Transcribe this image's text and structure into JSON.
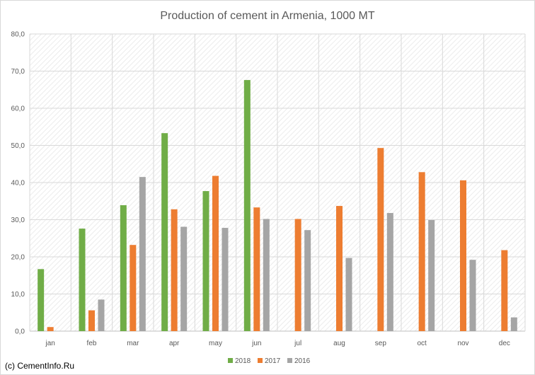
{
  "chart_data": {
    "type": "bar",
    "title": "Production of cement in Armenia, 1000 MT",
    "categories": [
      "jan",
      "feb",
      "mar",
      "apr",
      "may",
      "jun",
      "jul",
      "aug",
      "sep",
      "oct",
      "nov",
      "dec"
    ],
    "series": [
      {
        "name": "2018",
        "color": "#70ad47",
        "values": [
          16.7,
          27.6,
          33.9,
          53.3,
          37.7,
          67.6,
          null,
          null,
          null,
          null,
          null,
          null
        ]
      },
      {
        "name": "2017",
        "color": "#ed7d31",
        "values": [
          1.1,
          5.6,
          23.2,
          32.8,
          41.8,
          33.3,
          30.2,
          33.7,
          49.3,
          42.8,
          40.6,
          21.8
        ]
      },
      {
        "name": "2016",
        "color": "#a5a5a5",
        "values": [
          null,
          8.5,
          41.5,
          28.1,
          27.8,
          30.2,
          27.2,
          19.7,
          31.8,
          29.9,
          19.2,
          3.7
        ]
      }
    ],
    "yticks": [
      "0,0",
      "10,0",
      "20,0",
      "30,0",
      "40,0",
      "50,0",
      "60,0",
      "70,0",
      "80,0"
    ],
    "ylim": [
      0,
      80
    ],
    "grid": true,
    "gridlines": "vertical and horizontal",
    "plot_background": "diagonal hatch",
    "legend_position": "bottom"
  },
  "credit": "(c) CementInfo.Ru"
}
